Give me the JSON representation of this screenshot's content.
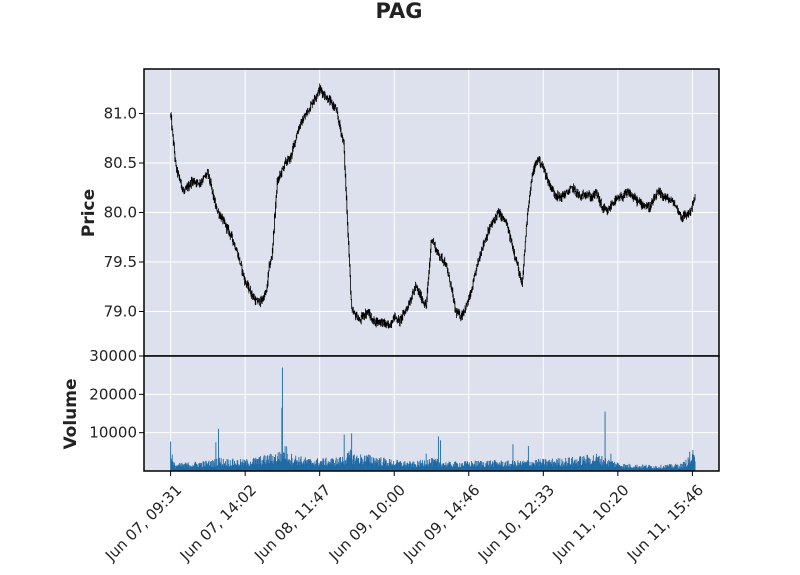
{
  "chart_data": {
    "type": "ohlc",
    "title": "PAG",
    "style": {
      "panel_bg": "#dce1ed",
      "grid_color": "#ffffff",
      "price_color": "#000000",
      "volume_color": "#1f6aa5",
      "frame_color": "#000000"
    },
    "price_panel": {
      "ylabel": "Price",
      "ylim": [
        78.55,
        81.45
      ],
      "yticks": [
        79.0,
        79.5,
        80.0,
        80.5,
        81.0
      ],
      "ytick_labels": [
        "79.0",
        "79.5",
        "80.0",
        "80.5",
        "81.0"
      ]
    },
    "volume_panel": {
      "ylabel": "Volume",
      "ylim": [
        0,
        30000
      ],
      "yticks": [
        10000,
        20000,
        30000
      ],
      "ytick_labels": [
        "10000",
        "20000",
        "30000"
      ]
    },
    "x_axis": {
      "range": [
        -50,
        1030
      ],
      "tick_positions": [
        0,
        140,
        280,
        420,
        560,
        700,
        840,
        980
      ],
      "tick_labels": [
        "Jun 07, 09:31",
        "Jun 07, 14:02",
        "Jun 08, 11:47",
        "Jun 09, 10:00",
        "Jun 09, 14:46",
        "Jun 10, 12:33",
        "Jun 11, 10:20",
        "Jun 11, 15:46"
      ]
    },
    "price_path": {
      "x": [
        0,
        10,
        25,
        40,
        55,
        70,
        85,
        100,
        115,
        125,
        140,
        150,
        160,
        170,
        180,
        185,
        190,
        200,
        215,
        225,
        240,
        255,
        265,
        280,
        295,
        310,
        325,
        340,
        350,
        355,
        360,
        370,
        380,
        395,
        410,
        420,
        430,
        445,
        460,
        470,
        480,
        490,
        500,
        515,
        525,
        535,
        545,
        555,
        565,
        575,
        585,
        600,
        615,
        630,
        640,
        650,
        660,
        670,
        680,
        690,
        700,
        710,
        720,
        730,
        745,
        755,
        770,
        780,
        790,
        800,
        810,
        820,
        830,
        845,
        860,
        880,
        900,
        915,
        930,
        945,
        960,
        975,
        985
      ],
      "y": [
        80.98,
        80.45,
        80.2,
        80.32,
        80.3,
        80.4,
        80.05,
        79.9,
        79.75,
        79.6,
        79.3,
        79.2,
        79.1,
        79.1,
        79.2,
        79.45,
        79.55,
        80.3,
        80.5,
        80.55,
        80.85,
        81.0,
        81.1,
        81.25,
        81.15,
        81.05,
        80.7,
        79.0,
        78.95,
        78.9,
        78.95,
        79.0,
        78.9,
        78.9,
        78.85,
        78.95,
        78.9,
        79.05,
        79.25,
        79.15,
        79.05,
        79.75,
        79.6,
        79.5,
        79.3,
        79.0,
        78.95,
        79.05,
        79.2,
        79.45,
        79.65,
        79.85,
        80.0,
        79.9,
        79.7,
        79.5,
        79.25,
        80.0,
        80.4,
        80.55,
        80.45,
        80.3,
        80.2,
        80.15,
        80.2,
        80.25,
        80.15,
        80.2,
        80.15,
        80.2,
        80.05,
        80.0,
        80.1,
        80.15,
        80.2,
        80.1,
        80.05,
        80.2,
        80.15,
        80.1,
        79.95,
        80.0,
        80.15
      ]
    },
    "volume_profile": {
      "x": [
        0,
        5,
        10,
        40,
        80,
        90,
        95,
        100,
        140,
        180,
        200,
        210,
        215,
        220,
        225,
        260,
        300,
        320,
        335,
        340,
        345,
        380,
        410,
        440,
        460,
        480,
        500,
        520,
        545,
        560,
        600,
        640,
        680,
        720,
        760,
        800,
        820,
        850,
        880,
        920,
        960,
        975,
        985
      ],
      "y": [
        6500,
        1800,
        1500,
        1800,
        2200,
        2800,
        2600,
        2500,
        2300,
        3200,
        3800,
        4800,
        5500,
        4500,
        3500,
        2500,
        2600,
        2800,
        3800,
        4500,
        3500,
        3200,
        2400,
        2000,
        1800,
        2600,
        2400,
        1800,
        1900,
        2000,
        2200,
        2000,
        2300,
        2500,
        2800,
        3500,
        2500,
        1500,
        1300,
        1200,
        1500,
        3000,
        3500
      ]
    },
    "volume_spikes": [
      {
        "x": 90,
        "value": 11000
      },
      {
        "x": 85,
        "value": 7500
      },
      {
        "x": 210,
        "value": 27000
      },
      {
        "x": 209,
        "value": 16500
      },
      {
        "x": 326,
        "value": 9500
      },
      {
        "x": 340,
        "value": 9800
      },
      {
        "x": 503,
        "value": 9000
      },
      {
        "x": 507,
        "value": 8000
      },
      {
        "x": 480,
        "value": 4500
      },
      {
        "x": 643,
        "value": 7000
      },
      {
        "x": 672,
        "value": 6500
      },
      {
        "x": 816,
        "value": 15500
      },
      {
        "x": 827,
        "value": 4500
      },
      {
        "x": 975,
        "value": 5000
      },
      {
        "x": 981,
        "value": 5500
      }
    ]
  }
}
